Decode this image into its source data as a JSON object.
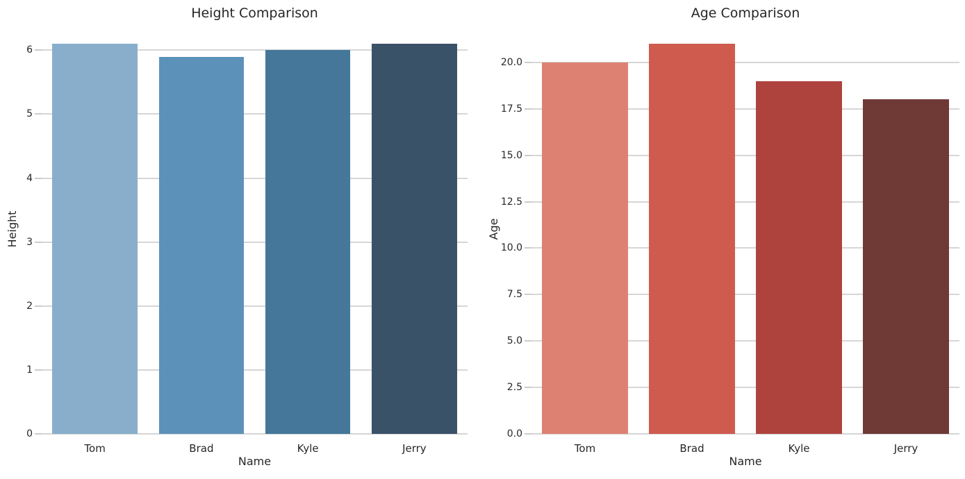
{
  "styles": {
    "background": "#ffffff",
    "grid_color": "#d6d6d6",
    "tick_mark_color": "#cbcbcb",
    "text_color": "#262626"
  },
  "chart_data": [
    {
      "type": "bar",
      "title": "Height Comparison",
      "xlabel": "Name",
      "ylabel": "Height",
      "categories": [
        "Tom",
        "Brad",
        "Kyle",
        "Jerry"
      ],
      "values": [
        6.1,
        5.9,
        6.0,
        6.1
      ],
      "ylim": [
        0,
        6.405
      ],
      "yticks": [
        0,
        1,
        2,
        3,
        4,
        5,
        6
      ],
      "ytick_labels": [
        "0",
        "1",
        "2",
        "3",
        "4",
        "5",
        "6"
      ],
      "bar_colors": [
        "#88AECB",
        "#5C92BA",
        "#44779A",
        "#3A5268"
      ],
      "grid": true,
      "legend": false
    },
    {
      "type": "bar",
      "title": "Age Comparison",
      "xlabel": "Name",
      "ylabel": "Age",
      "categories": [
        "Tom",
        "Brad",
        "Kyle",
        "Jerry"
      ],
      "values": [
        20,
        21,
        19,
        18
      ],
      "ylim": [
        0,
        22.05
      ],
      "yticks": [
        0,
        2.5,
        5,
        7.5,
        10,
        12.5,
        15,
        17.5,
        20
      ],
      "ytick_labels": [
        "0.0",
        "2.5",
        "5.0",
        "7.5",
        "10.0",
        "12.5",
        "15.0",
        "17.5",
        "20.0"
      ],
      "bar_colors": [
        "#DD8273",
        "#CF5B4F",
        "#AE433E",
        "#6F3A36"
      ],
      "grid": true,
      "legend": false
    }
  ]
}
